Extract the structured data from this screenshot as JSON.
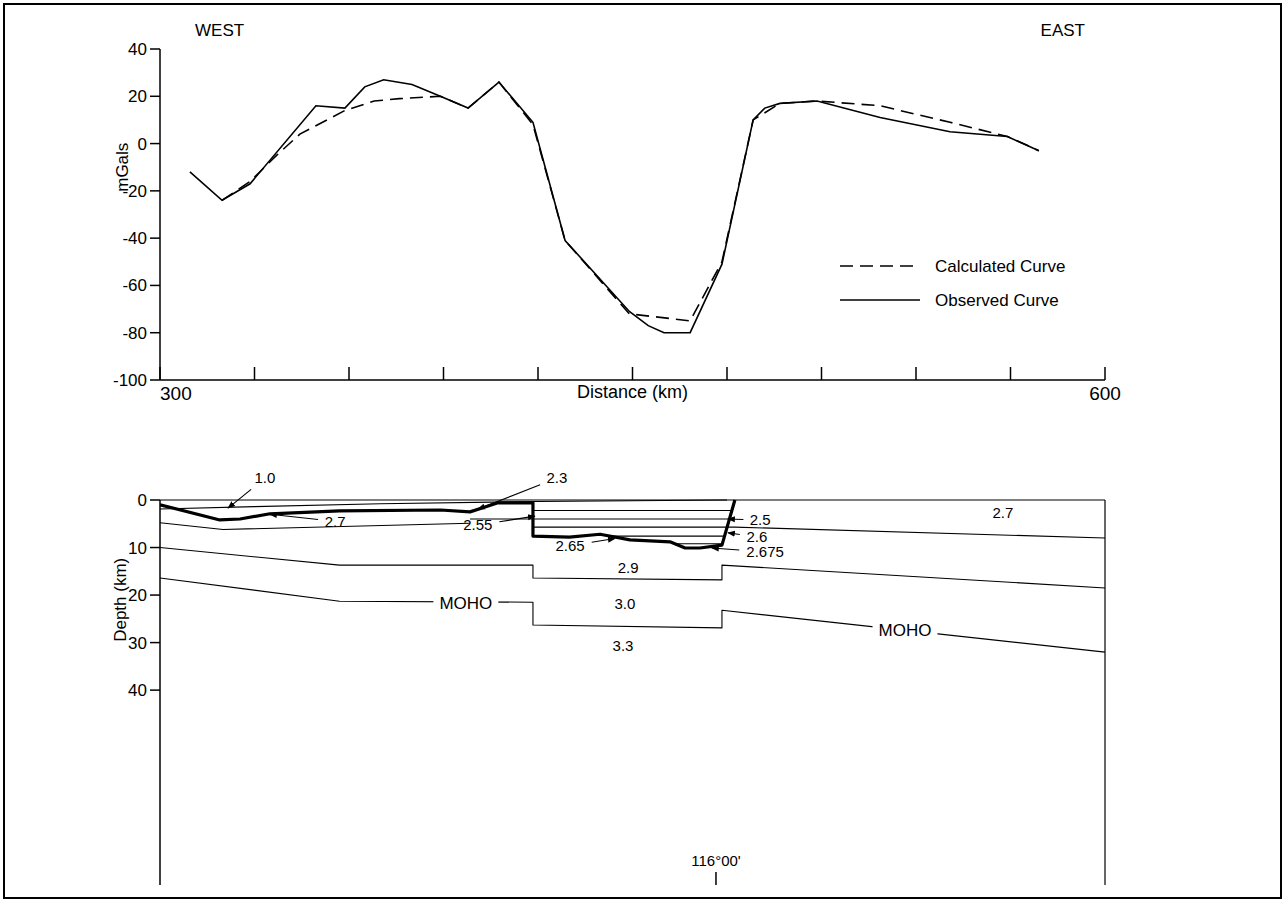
{
  "chart_data": [
    {
      "type": "line",
      "left_label": "WEST",
      "right_label": "EAST",
      "x_label": "Distance (km)",
      "y_label": "mGals",
      "xlim": [
        300,
        600
      ],
      "xticks": [
        300,
        600
      ],
      "x_minor_ticks": [
        330,
        360,
        390,
        420,
        450,
        480,
        510,
        540,
        570
      ],
      "ylim": [
        -100,
        40
      ],
      "yticks": [
        -100,
        -80,
        -60,
        -40,
        -20,
        0,
        20,
        40
      ],
      "legend": "right",
      "series": [
        {
          "name": "Calculated Curve",
          "color": "#000000",
          "line_style": "dashed",
          "x": [
            319.7,
            328.6,
            337,
            344.4,
            358.7,
            368,
            376,
            389,
            397.8,
            407.6,
            418.4,
            428.6,
            449,
            468.3,
            478.4,
            488.3,
            496.8,
            508.6,
            528.6,
            550.8,
            569,
            579
          ],
          "values": [
            -24,
            -16,
            -5,
            4,
            14,
            18,
            19,
            20,
            15,
            26,
            8,
            -41,
            -72,
            -75,
            -50,
            10,
            17,
            18,
            16,
            9,
            3,
            -3
          ]
        },
        {
          "name": "Observed Curve",
          "color": "#000000",
          "line_style": "solid",
          "x": [
            309.5,
            319.7,
            328.6,
            349.5,
            358.7,
            365,
            371,
            380,
            389,
            397.8,
            407.6,
            418.4,
            428.6,
            449,
            455,
            460,
            468.3,
            478.4,
            488.3,
            492,
            496.8,
            508.6,
            528.6,
            550.8,
            569,
            579
          ],
          "values": [
            -12,
            -24,
            -17,
            16,
            15,
            24,
            27,
            25,
            20,
            15,
            26,
            9,
            -41,
            -71,
            -77,
            -80,
            -80,
            -51,
            10,
            15,
            17,
            18,
            11,
            5,
            3,
            -3
          ]
        }
      ]
    },
    {
      "type": "cross_section",
      "y_label": "Depth (km)",
      "xlim": [
        300,
        600
      ],
      "ylim": [
        0,
        81
      ],
      "yticks": [
        0,
        10,
        20,
        30,
        40
      ],
      "boundaries": [
        {
          "line_style": "solid",
          "x": [
            300,
            330,
            370,
            420,
            480
          ],
          "depth": [
            1.9,
            1.4,
            0.8,
            0.3,
            0
          ]
        },
        {
          "line_style": "thick",
          "x": [
            300,
            319,
            325.4,
            334.9,
            357,
            389,
            398.4,
            407.3,
            418.4,
            418.4,
            430,
            439.7,
            449.2,
            461.9,
            466.7,
            471.4,
            478.4,
            482.5
          ],
          "depth": [
            1.0,
            4.2,
            4.0,
            2.9,
            2.3,
            2.1,
            2.5,
            0.6,
            0.6,
            7.6,
            7.8,
            7.2,
            8.4,
            8.8,
            10.1,
            10.1,
            9.5,
            0
          ]
        },
        {
          "line_style": "solid",
          "x": [
            300,
            320,
            398.4
          ],
          "depth": [
            4.8,
            6.2,
            4.9
          ]
        },
        {
          "line_style": "solid",
          "x": [
            398.4,
            480.8
          ],
          "depth": [
            4.0,
            4.0
          ]
        },
        {
          "line_style": "solid",
          "x": [
            418.4,
            481.6
          ],
          "depth": [
            2.2,
            2.2
          ]
        },
        {
          "line_style": "solid",
          "x": [
            418.4,
            482.5,
            600
          ],
          "depth": [
            5.7,
            5.7,
            8.0
          ]
        },
        {
          "line_style": "solid",
          "x": [
            442,
            479.2
          ],
          "depth": [
            7.6,
            7.6
          ]
        },
        {
          "line_style": "solid",
          "x": [
            463.5,
            478.5
          ],
          "depth": [
            9.2,
            9.2
          ]
        },
        {
          "line_style": "solid",
          "x": [
            300,
            357,
            418.4,
            418.4,
            478.4,
            478.4,
            600
          ],
          "depth": [
            10,
            13.7,
            13.7,
            16.4,
            16.8,
            13.7,
            18.5
          ]
        },
        {
          "line_style": "solid",
          "x": [
            300,
            357,
            418.4,
            418.4,
            478.4,
            478.4,
            600
          ],
          "depth": [
            16.4,
            21.3,
            21.5,
            26.3,
            26.9,
            23.2,
            32.0
          ]
        }
      ],
      "labels": [
        {
          "text": "1.0",
          "x": 333.3,
          "depth": -4.6,
          "arrow_x": 321.6,
          "arrow_depth": 1.7
        },
        {
          "text": "2.3",
          "x": 426,
          "depth": -4.6,
          "arrow_x": 401,
          "arrow_depth": 1.9
        },
        {
          "text": "2.7",
          "x": 355.6,
          "depth": 4.5,
          "arrow_x": 334.9,
          "arrow_depth": 3.0
        },
        {
          "text": "2.7",
          "x": 567.6,
          "depth": 2.7
        },
        {
          "text": "2.5",
          "x": 490.5,
          "depth": 4.2,
          "arrow_x": 480.3,
          "arrow_depth": 4.0
        },
        {
          "text": "2.55",
          "x": 400.9,
          "depth": 5.3,
          "arrow_x": 419,
          "arrow_depth": 3.4
        },
        {
          "text": "2.6",
          "x": 489.5,
          "depth": 7.8,
          "arrow_x": 480.3,
          "arrow_depth": 6.9
        },
        {
          "text": "2.65",
          "x": 430.2,
          "depth": 9.6,
          "arrow_x": 444.4,
          "arrow_depth": 8.1
        },
        {
          "text": "2.675",
          "x": 492.1,
          "depth": 10.9,
          "arrow_x": 475.2,
          "arrow_depth": 10.1
        },
        {
          "text": "2.9",
          "x": 448.6,
          "depth": 14.3
        },
        {
          "text": "3.0",
          "x": 447.6,
          "depth": 21.9
        },
        {
          "text": "3.3",
          "x": 447,
          "depth": 30.7
        },
        {
          "text": "MOHO",
          "x": 397.1,
          "depth": 21.6
        },
        {
          "text": "MOHO",
          "x": 536.5,
          "depth": 27.4
        }
      ],
      "meridian": {
        "text": "116°00'",
        "x": 476.5
      }
    }
  ]
}
